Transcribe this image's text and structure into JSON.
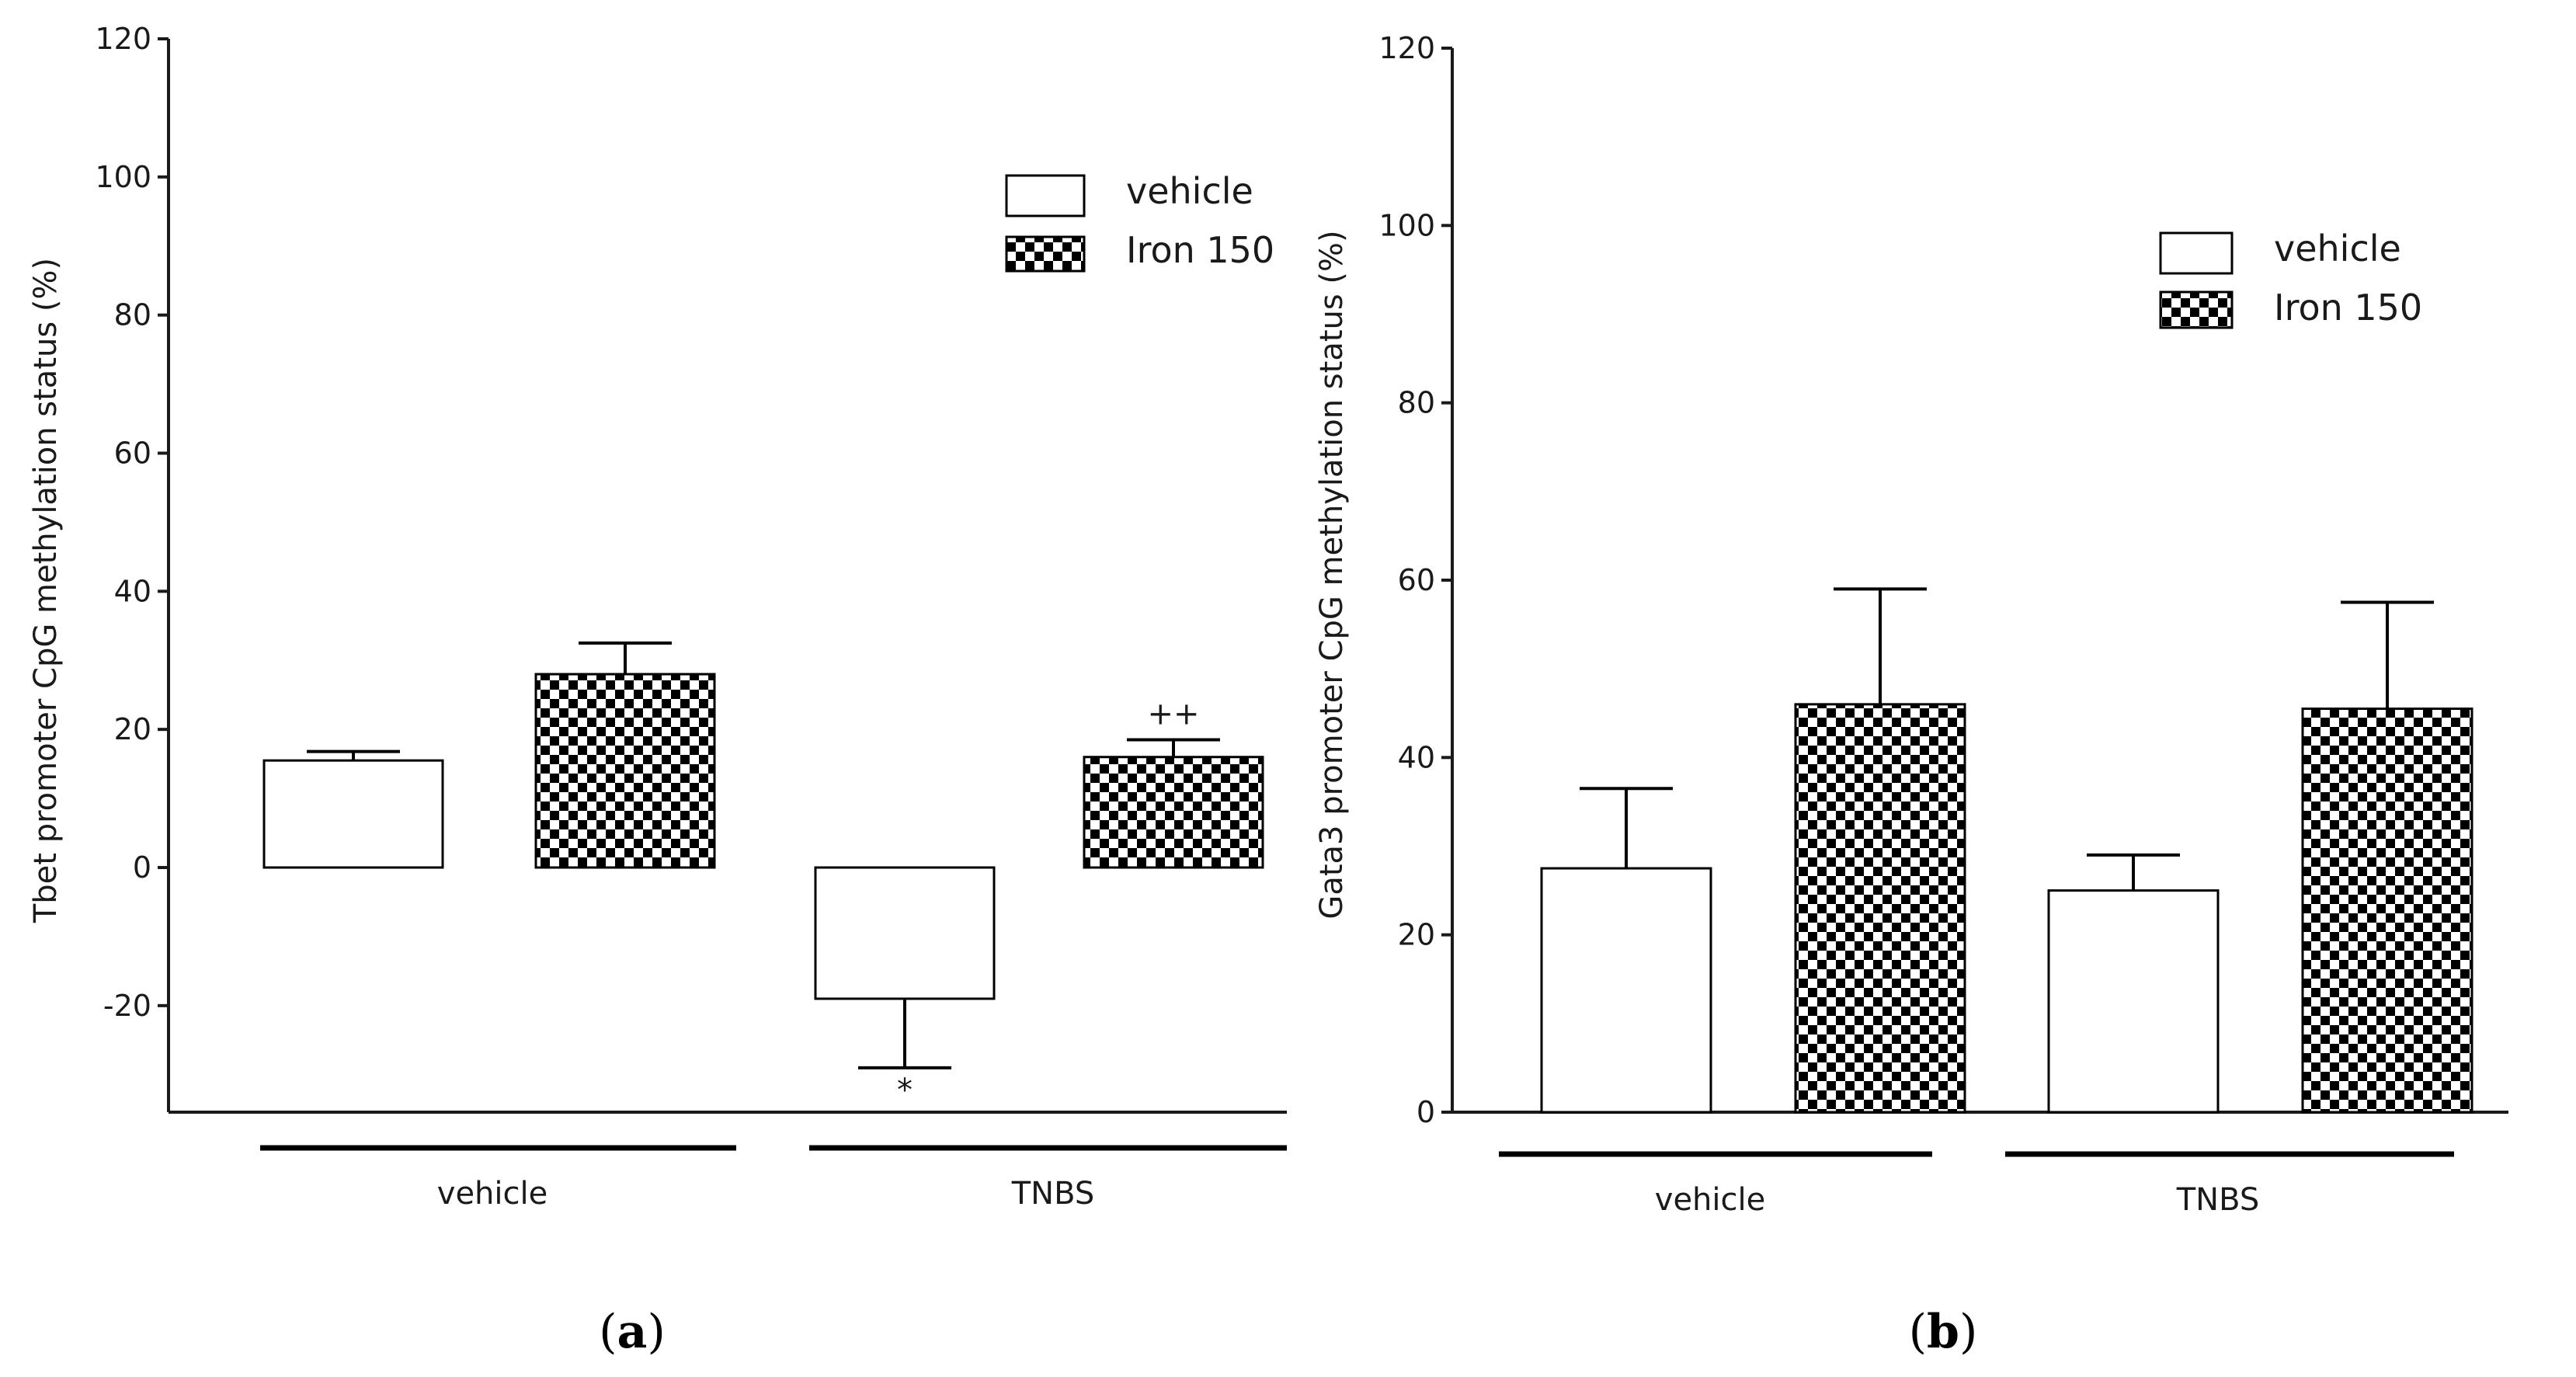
{
  "colors": {
    "bar_fill_vehicle": "#ffffff",
    "check_dark": "#000000",
    "check_light": "#ffffff",
    "axis": "#1a1a1a"
  },
  "chart_data": [
    {
      "type": "bar",
      "panel": "a",
      "panel_label": {
        "open": "(",
        "letter": "a",
        "close": ")"
      },
      "ylabel": "Tbet promoter CpG methylation status (%)",
      "ylim": [
        -35,
        120
      ],
      "yticks": [
        -20,
        0,
        20,
        40,
        60,
        80,
        100,
        120
      ],
      "ytick_labels": [
        "-20",
        "0",
        "20",
        "40",
        "60",
        "80",
        "100",
        "120"
      ],
      "categories": [
        "vehicle",
        "TNBS"
      ],
      "legend": [
        "vehicle",
        "Iron 150"
      ],
      "series": [
        {
          "name": "vehicle",
          "pattern": "open",
          "values": [
            15.5,
            -19
          ],
          "errors": [
            1.3,
            10
          ]
        },
        {
          "name": "Iron 150",
          "pattern": "checkered",
          "values": [
            28,
            16
          ],
          "errors": [
            4.5,
            2.5
          ]
        }
      ],
      "annotations": [
        {
          "text": "*",
          "category": 1,
          "series": 0,
          "position": "below"
        },
        {
          "text": "++",
          "category": 1,
          "series": 1,
          "position": "above"
        }
      ]
    },
    {
      "type": "bar",
      "panel": "b",
      "panel_label": {
        "open": "(",
        "letter": "b",
        "close": ")"
      },
      "ylabel": "Gata3 promoter CpG methylation status (%)",
      "ylim": [
        0,
        120
      ],
      "yticks": [
        0,
        20,
        40,
        60,
        80,
        100,
        120
      ],
      "ytick_labels": [
        "0",
        "20",
        "40",
        "60",
        "80",
        "100",
        "120"
      ],
      "categories": [
        "vehicle",
        "TNBS"
      ],
      "legend": [
        "vehicle",
        "Iron 150"
      ],
      "series": [
        {
          "name": "vehicle",
          "pattern": "open",
          "values": [
            27.5,
            25
          ],
          "errors": [
            9,
            4
          ]
        },
        {
          "name": "Iron 150",
          "pattern": "checkered",
          "values": [
            46,
            45.5
          ],
          "errors": [
            13,
            12
          ]
        }
      ],
      "annotations": []
    }
  ]
}
